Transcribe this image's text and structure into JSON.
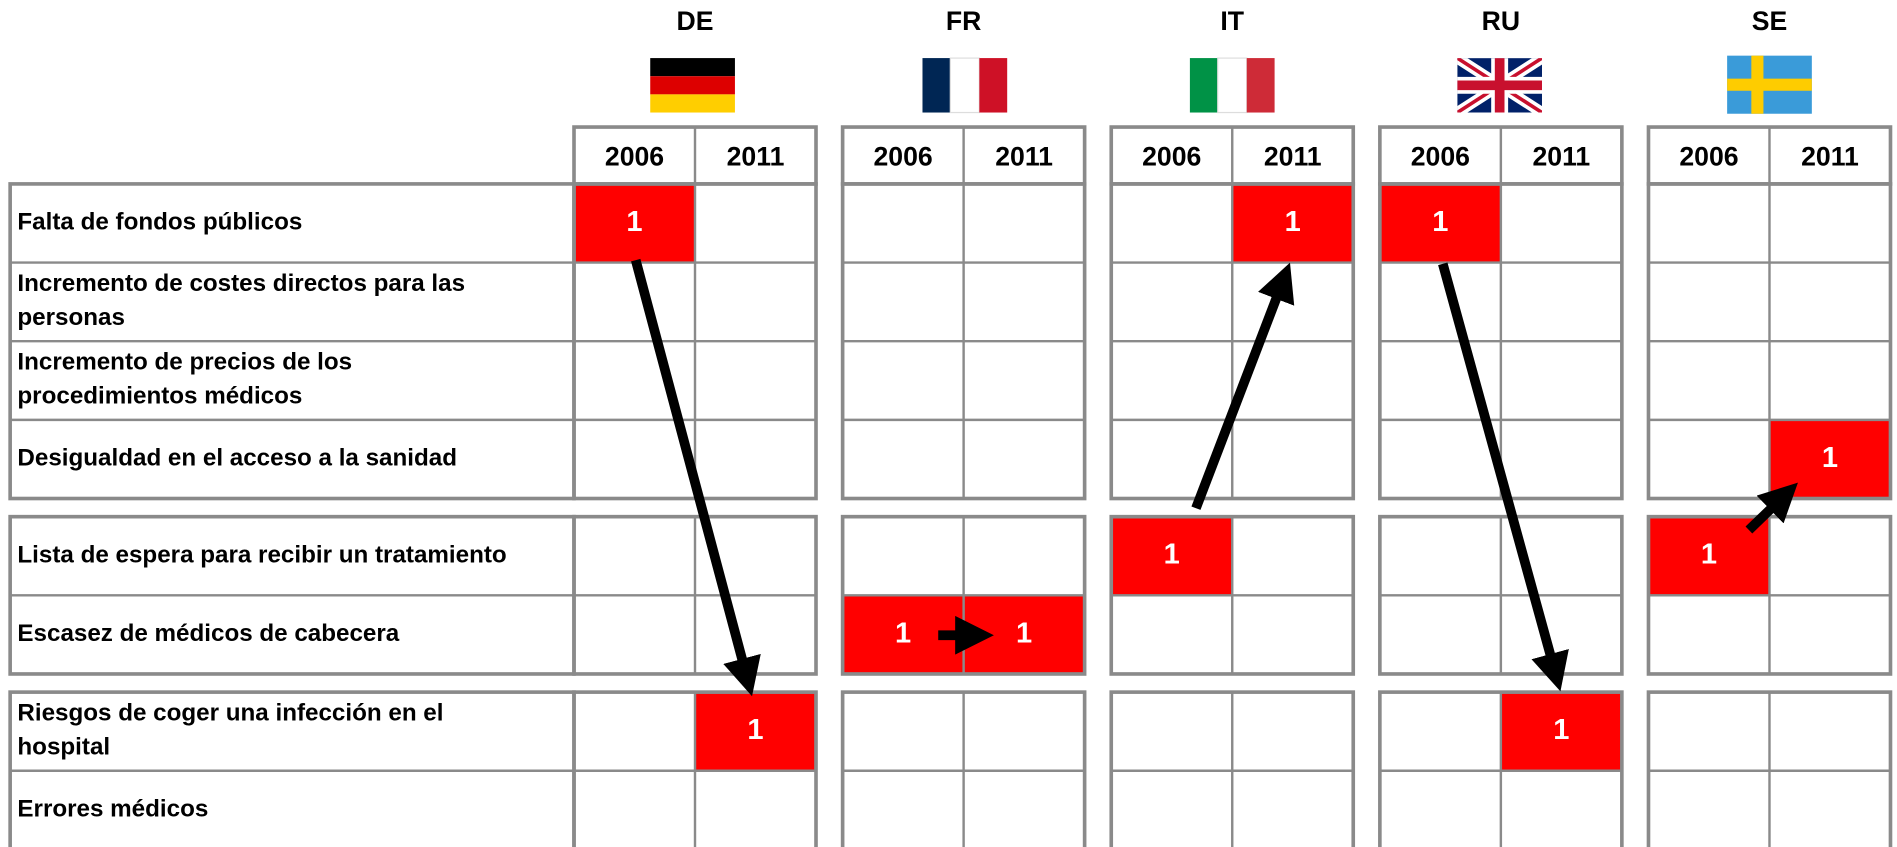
{
  "countries": [
    {
      "code": "DE",
      "years": [
        "2006",
        "2011"
      ]
    },
    {
      "code": "FR",
      "years": [
        "2006",
        "2011"
      ]
    },
    {
      "code": "IT",
      "years": [
        "2006",
        "2011"
      ]
    },
    {
      "code": "RU",
      "years": [
        "2006",
        "2011"
      ]
    },
    {
      "code": "SE",
      "years": [
        "2006",
        "2011"
      ]
    }
  ],
  "groups": [
    {
      "rows": [
        {
          "label": "Falta de fondos públicos",
          "cells": [
            1,
            null,
            null,
            null,
            null,
            1,
            1,
            null,
            null,
            null
          ]
        },
        {
          "label": "Incremento de costes directos para las personas",
          "cells": [
            null,
            null,
            null,
            null,
            null,
            null,
            null,
            null,
            null,
            null
          ]
        },
        {
          "label": "Incremento de precios de los procedimientos médicos",
          "cells": [
            null,
            null,
            null,
            null,
            null,
            null,
            null,
            null,
            null,
            null
          ]
        },
        {
          "label": "Desigualdad en el acceso a la sanidad",
          "cells": [
            null,
            null,
            null,
            null,
            null,
            null,
            null,
            null,
            null,
            1
          ]
        }
      ]
    },
    {
      "rows": [
        {
          "label": "Lista de espera para recibir un tratamiento",
          "cells": [
            null,
            null,
            null,
            null,
            1,
            null,
            null,
            null,
            1,
            null
          ]
        },
        {
          "label": "Escasez de médicos de cabecera",
          "cells": [
            null,
            null,
            1,
            1,
            null,
            null,
            null,
            null,
            null,
            null
          ]
        }
      ]
    },
    {
      "rows": [
        {
          "label": "Riesgos de coger una infección en el hospital",
          "cells": [
            null,
            1,
            null,
            null,
            null,
            null,
            null,
            1,
            null,
            null
          ]
        },
        {
          "label": "Errores médicos",
          "cells": [
            null,
            null,
            null,
            null,
            null,
            null,
            null,
            null,
            null,
            null
          ]
        }
      ]
    }
  ]
}
